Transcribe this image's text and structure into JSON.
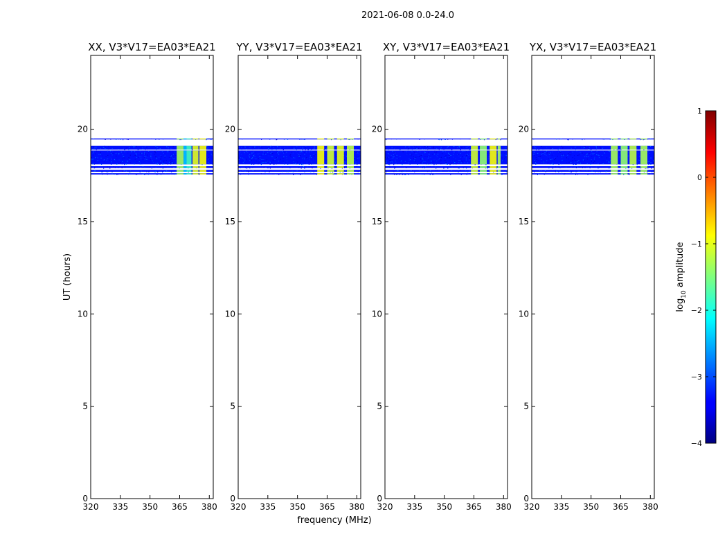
{
  "figure": {
    "suptitle": "2021-06-08 0.0-24.0",
    "xlabel": "frequency (MHz)",
    "ylabel": "UT (hours)"
  },
  "colorbar": {
    "label_prefix": "log",
    "label_sub": "10",
    "label_suffix": " amplitude",
    "range": [
      -4,
      1
    ],
    "ticks": [
      -4,
      -3,
      -2,
      -1,
      0,
      1
    ],
    "tick_labels": [
      "−4",
      "−3",
      "−2",
      "−1",
      "0",
      "1"
    ],
    "colormap": "jet"
  },
  "chart_data": [
    {
      "type": "heatmap",
      "title": "XX, V3*V17=EA03*EA21",
      "xlim": [
        320,
        382
      ],
      "ylim": [
        0,
        24
      ],
      "xticks": [
        320,
        335,
        350,
        365,
        380
      ],
      "yticks": [
        0,
        5,
        10,
        15,
        20
      ],
      "background_level": -3.3,
      "time_rows": [
        {
          "t0": 17.55,
          "t1": 17.62
        },
        {
          "t0": 17.7,
          "t1": 17.8
        },
        {
          "t0": 17.9,
          "t1": 18.0
        },
        {
          "t0": 18.1,
          "t1": 18.85
        },
        {
          "t0": 18.9,
          "t1": 19.1
        },
        {
          "t0": 19.45,
          "t1": 19.5
        }
      ],
      "rfi_bands": [
        {
          "f0": 363.5,
          "f1": 367,
          "level": -1.3
        },
        {
          "f0": 367,
          "f1": 368.5,
          "level": -2.4
        },
        {
          "f0": 368.5,
          "f1": 371,
          "level": -1.8
        },
        {
          "f0": 371.5,
          "f1": 374.5,
          "level": -1.0
        },
        {
          "f0": 375,
          "f1": 378.5,
          "level": -0.9
        }
      ]
    },
    {
      "type": "heatmap",
      "title": "YY, V3*V17=EA03*EA21",
      "xlim": [
        320,
        382
      ],
      "ylim": [
        0,
        24
      ],
      "xticks": [
        320,
        335,
        350,
        365,
        380
      ],
      "yticks": [
        0,
        5,
        10,
        15,
        20
      ],
      "background_level": -3.3,
      "time_rows": [
        {
          "t0": 17.55,
          "t1": 17.62
        },
        {
          "t0": 17.7,
          "t1": 17.8
        },
        {
          "t0": 17.9,
          "t1": 18.0
        },
        {
          "t0": 18.1,
          "t1": 18.85
        },
        {
          "t0": 18.9,
          "t1": 19.1
        },
        {
          "t0": 19.45,
          "t1": 19.5
        }
      ],
      "rfi_bands": [
        {
          "f0": 360,
          "f1": 363.5,
          "level": -0.9
        },
        {
          "f0": 365,
          "f1": 368.5,
          "level": -1.1
        },
        {
          "f0": 370,
          "f1": 373.5,
          "level": -1.0
        },
        {
          "f0": 375,
          "f1": 378.5,
          "level": -1.2
        }
      ]
    },
    {
      "type": "heatmap",
      "title": "XY, V3*V17=EA03*EA21",
      "xlim": [
        320,
        382
      ],
      "ylim": [
        0,
        24
      ],
      "xticks": [
        320,
        335,
        350,
        365,
        380
      ],
      "yticks": [
        0,
        5,
        10,
        15,
        20
      ],
      "background_level": -3.3,
      "time_rows": [
        {
          "t0": 17.55,
          "t1": 17.62
        },
        {
          "t0": 17.7,
          "t1": 17.8
        },
        {
          "t0": 17.9,
          "t1": 18.0
        },
        {
          "t0": 18.1,
          "t1": 18.85
        },
        {
          "t0": 18.9,
          "t1": 19.1
        },
        {
          "t0": 19.45,
          "t1": 19.5
        }
      ],
      "rfi_bands": [
        {
          "f0": 363.5,
          "f1": 367,
          "level": -1.1
        },
        {
          "f0": 368,
          "f1": 371.5,
          "level": -1.4
        },
        {
          "f0": 373,
          "f1": 376.5,
          "level": -0.9
        },
        {
          "f0": 377,
          "f1": 378.5,
          "level": -1.3
        }
      ]
    },
    {
      "type": "heatmap",
      "title": "YX, V3*V17=EA03*EA21",
      "xlim": [
        320,
        382
      ],
      "ylim": [
        0,
        24
      ],
      "xticks": [
        320,
        335,
        350,
        365,
        380
      ],
      "yticks": [
        0,
        5,
        10,
        15,
        20
      ],
      "background_level": -3.3,
      "time_rows": [
        {
          "t0": 17.55,
          "t1": 17.62
        },
        {
          "t0": 17.7,
          "t1": 17.8
        },
        {
          "t0": 17.9,
          "t1": 18.0
        },
        {
          "t0": 18.1,
          "t1": 18.85
        },
        {
          "t0": 18.9,
          "t1": 19.1
        },
        {
          "t0": 19.45,
          "t1": 19.5
        }
      ],
      "rfi_bands": [
        {
          "f0": 360,
          "f1": 363.5,
          "level": -1.3
        },
        {
          "f0": 365,
          "f1": 368.5,
          "level": -1.4
        },
        {
          "f0": 369.5,
          "f1": 373,
          "level": -1.2
        },
        {
          "f0": 375,
          "f1": 378.5,
          "level": -1.3
        }
      ]
    }
  ]
}
